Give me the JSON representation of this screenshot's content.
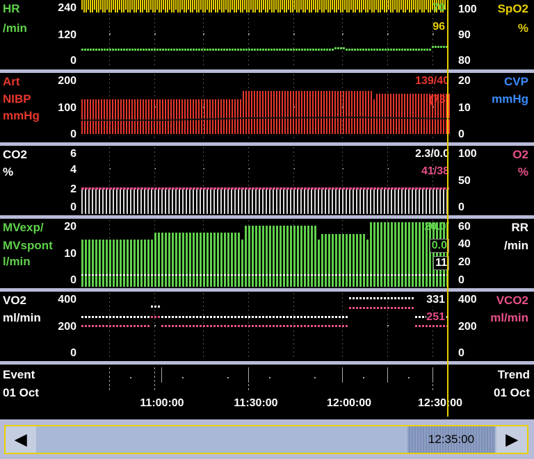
{
  "colors": {
    "green": "#5fd14a",
    "yellow": "#e8d000",
    "red": "#e8372d",
    "blue": "#3a8cff",
    "white": "#ffffff",
    "pink": "#e8508a"
  },
  "panels": {
    "hr": {
      "left_top": "HR",
      "left_bot": "/min",
      "right_top": "SpO2",
      "right_bot": "%",
      "ticks_left": [
        "240",
        "120",
        "0"
      ],
      "ticks_right": [
        "100",
        "90",
        "80"
      ],
      "value1": "70",
      "value2": "96"
    },
    "art": {
      "left1": "Art",
      "left2": "NIBP",
      "left3": "mmHg",
      "right1": "CVP",
      "right2": "mmHg",
      "ticks_left": [
        "200",
        "100",
        "0"
      ],
      "ticks_right": [
        "20",
        "10",
        "0"
      ],
      "value1": "139/40",
      "value2": "(73)"
    },
    "co2": {
      "left1": "CO2",
      "left2": "%",
      "right1": "O2",
      "right2": "%",
      "ticks_left": [
        "6",
        "4",
        "2",
        "0"
      ],
      "ticks_right": [
        "100",
        "50",
        "0"
      ],
      "value1": "2.3/0.0",
      "value2": "41/38"
    },
    "mv": {
      "left1": "MVexp/",
      "left2": "MVspont",
      "left3": "l/min",
      "right1": "RR",
      "right2": "/min",
      "ticks_left": [
        "20",
        "10",
        "0"
      ],
      "ticks_right": [
        "60",
        "40",
        "20",
        "0"
      ],
      "value1": "20.0/",
      "value2": "0.0",
      "value3": "11"
    },
    "vo2": {
      "left1": "VO2",
      "left2": "ml/min",
      "right1": "VCO2",
      "right2": "ml/min",
      "ticks_left": [
        "400",
        "200",
        "0"
      ],
      "ticks_right": [
        "400",
        "200",
        "0"
      ],
      "value1": "331",
      "value2": "251"
    }
  },
  "event": {
    "left1": "Event",
    "left2": "01 Oct",
    "right1": "Trend",
    "right2": "01 Oct"
  },
  "time_labels": [
    "11:00:00",
    "11:30:00",
    "12:00:00",
    "12:30:00"
  ],
  "scrollbar": {
    "thumb_time": "12:35:00",
    "left_icon": "arrow-left-icon",
    "right_icon": "arrow-right-icon"
  }
}
